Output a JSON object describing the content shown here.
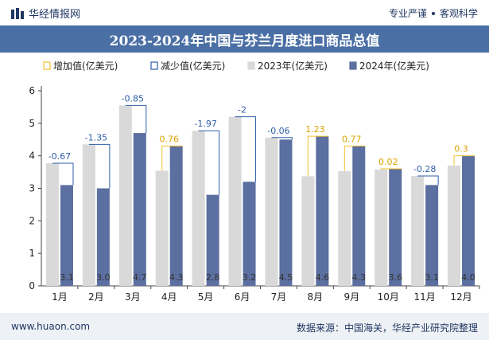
{
  "header": {
    "logo_text": "华经情报网",
    "tag_1": "专业严谨",
    "tag_2": "客观科学"
  },
  "footer": {
    "website": "www.huaon.com",
    "source": "数据来源：中国海关，华经产业研究院整理"
  },
  "colors": {
    "bar_2023": "#d9d9d9",
    "bar_2024": "#5b6fa0",
    "increase": "#f2c12e",
    "decrease": "#2e5ea8",
    "inside_label": "#333333"
  },
  "chart_data": {
    "type": "bar",
    "title": "2023-2024年中国与芬兰月度进口商品总值",
    "categories": [
      "1月",
      "2月",
      "3月",
      "4月",
      "5月",
      "6月",
      "7月",
      "8月",
      "9月",
      "10月",
      "11月",
      "12月"
    ],
    "series": [
      {
        "name": "2023年(亿美元)",
        "values": [
          3.77,
          4.35,
          5.55,
          3.54,
          4.77,
          5.2,
          4.56,
          3.37,
          3.53,
          3.58,
          3.38,
          3.7
        ]
      },
      {
        "name": "2024年(亿美元)",
        "values": [
          3.1,
          3.0,
          4.7,
          4.3,
          2.8,
          3.2,
          4.5,
          4.6,
          4.3,
          3.6,
          3.1,
          4.0
        ]
      }
    ],
    "change": [
      -0.67,
      -1.35,
      -0.85,
      0.76,
      -1.97,
      -2,
      -0.06,
      1.23,
      0.77,
      0.02,
      -0.28,
      0.3
    ],
    "change_labels": [
      "-0.67",
      "-1.35",
      "-0.85",
      "0.76",
      "-1.97",
      "-2",
      "-0.06",
      "1.23",
      "0.77",
      "0.02",
      "-0.28",
      "0.3"
    ],
    "value_labels_2024": [
      "3.1",
      "3.0",
      "4.7",
      "4.3",
      "2.8",
      "3.2",
      "4.5",
      "4.6",
      "4.3",
      "3.6",
      "3.1",
      "4.0"
    ],
    "legend": [
      "增加值(亿美元)",
      "减少值(亿美元)",
      "2023年(亿美元)",
      "2024年(亿美元)"
    ],
    "legend_position": "top",
    "y_ticks": [
      "0",
      "1",
      "2",
      "3",
      "4",
      "5",
      "6"
    ],
    "ylim": [
      0,
      6
    ],
    "grid": false
  }
}
